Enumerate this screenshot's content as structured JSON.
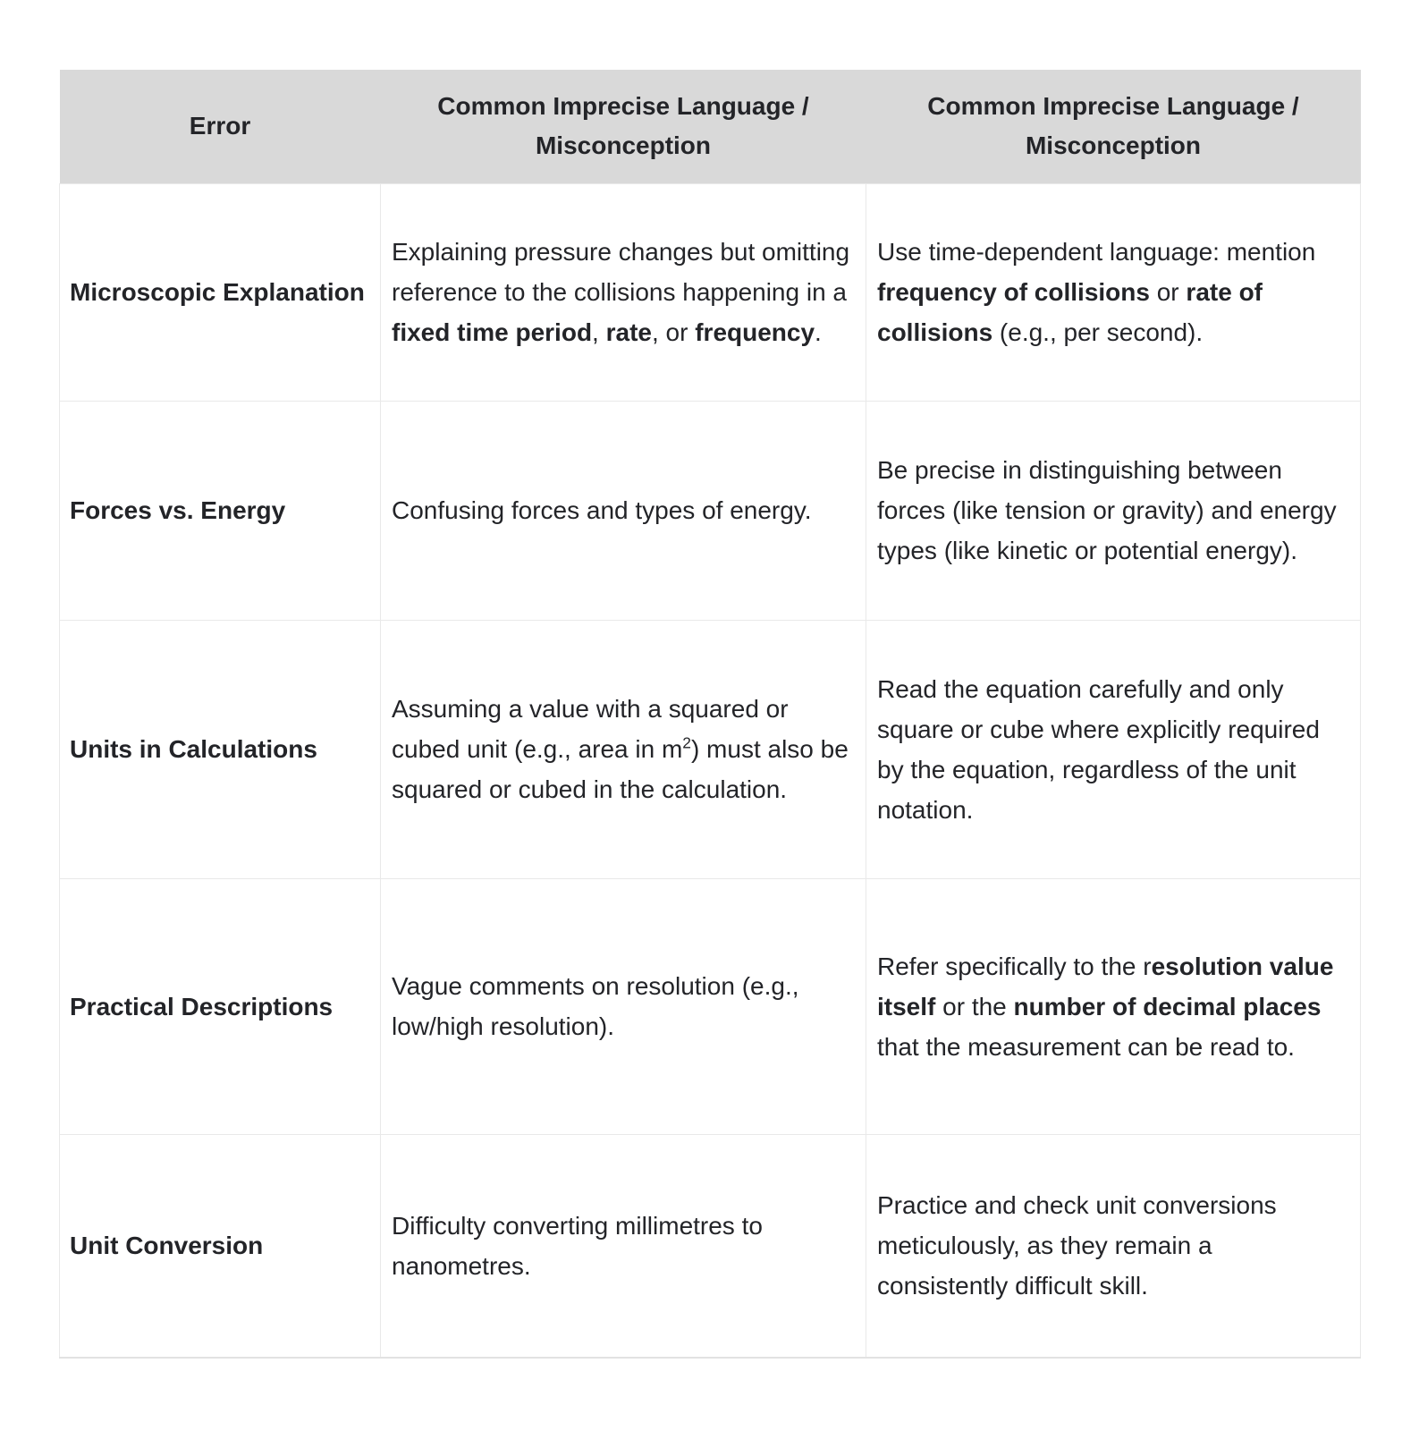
{
  "table": {
    "headers": [
      "Error",
      "Common Imprecise Language / Misconception",
      "Common Imprecise Language / Misconception"
    ],
    "rows": [
      {
        "error": "Microscopic Explanation",
        "misconception": [
          {
            "text": "Explaining pressure changes but omitting reference to the collisions happening in a "
          },
          {
            "text": "fixed time period",
            "bold": true
          },
          {
            "text": ", "
          },
          {
            "text": "rate",
            "bold": true
          },
          {
            "text": ", or "
          },
          {
            "text": "frequency",
            "bold": true
          },
          {
            "text": "."
          }
        ],
        "advice": [
          {
            "text": "Use time-dependent language: mention "
          },
          {
            "text": "frequency of collisions",
            "bold": true
          },
          {
            "text": " or "
          },
          {
            "text": "rate of collisions",
            "bold": true
          },
          {
            "text": " (e.g., per second)."
          }
        ]
      },
      {
        "error": "Forces vs. Energy",
        "misconception": [
          {
            "text": "Confusing forces and types of energy."
          }
        ],
        "advice": [
          {
            "text": "Be precise in distinguishing between forces (like tension or gravity) and energy types (like kinetic or potential energy)."
          }
        ]
      },
      {
        "error": "Units in Calculations",
        "misconception": [
          {
            "text": "Assuming a value with a squared or cubed unit (e.g., area in m"
          },
          {
            "text": "2",
            "sup": true
          },
          {
            "text": ") must also be squared or cubed in the calculation."
          }
        ],
        "advice": [
          {
            "text": "Read the equation carefully and only square or cube where explicitly required by the equation, regardless of the unit notation."
          }
        ]
      },
      {
        "error": "Practical Descriptions",
        "misconception": [
          {
            "text": "Vague comments on resolution (e.g., low/high resolution)."
          }
        ],
        "advice": [
          {
            "text": "Refer specifically to the r"
          },
          {
            "text": "esolution value itself",
            "bold": true
          },
          {
            "text": " or the "
          },
          {
            "text": "number of decimal places",
            "bold": true
          },
          {
            "text": " that the measurement can be read to."
          }
        ]
      },
      {
        "error": "Unit Conversion",
        "misconception": [
          {
            "text": "Difficulty converting millimetres to nanometres."
          }
        ],
        "advice": [
          {
            "text": "Practice and check unit conversions meticulously, as they remain a consistently difficult skill."
          }
        ]
      }
    ]
  },
  "colors": {
    "header_background": "#d9d9d9",
    "cell_border": "#e9e9e9",
    "text": "#232428"
  }
}
